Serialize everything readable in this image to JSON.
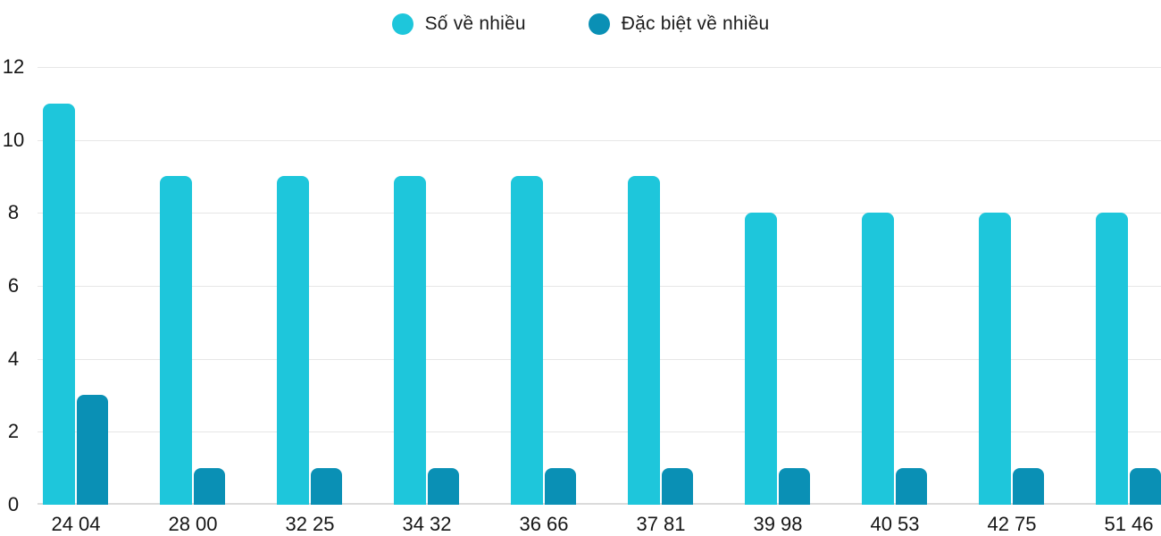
{
  "legend": {
    "items": [
      {
        "label": "Số về nhiều",
        "color": "#1ec6db"
      },
      {
        "label": "Đặc biệt về nhiều",
        "color": "#0a90b5"
      }
    ]
  },
  "chart_data": {
    "type": "bar",
    "categories": [
      "24 04",
      "28 00",
      "32 25",
      "34 32",
      "36 66",
      "37 81",
      "39 98",
      "40 53",
      "42 75",
      "51 46"
    ],
    "series": [
      {
        "name": "Số về nhiều",
        "color": "#1ec6db",
        "values": [
          11,
          9,
          9,
          9,
          9,
          9,
          8,
          8,
          8,
          8
        ]
      },
      {
        "name": "Đặc biệt về nhiều",
        "color": "#0a90b5",
        "values": [
          3,
          1,
          1,
          1,
          1,
          1,
          1,
          1,
          1,
          1
        ]
      }
    ],
    "title": "",
    "xlabel": "",
    "ylabel": "",
    "ylim": [
      0,
      12
    ],
    "yticks": [
      0,
      2,
      4,
      6,
      8,
      10,
      12
    ],
    "grid": true,
    "legend_position": "top",
    "gridline_color": "#e6e6e6",
    "axis_text_color": "#161616",
    "background_color": "#ffffff"
  }
}
